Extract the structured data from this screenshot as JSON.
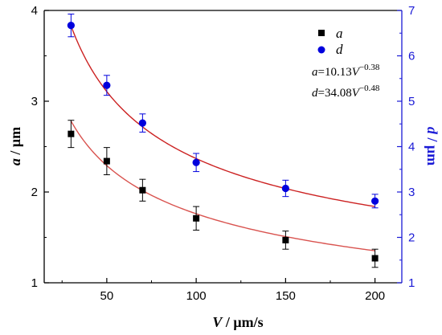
{
  "chart_data": {
    "type": "scatter",
    "x": [
      30,
      50,
      70,
      100,
      150,
      200
    ],
    "xlabel_var": "V",
    "xlabel_unit": " / μm/s",
    "xlim": [
      15,
      215
    ],
    "xticks": [
      "50",
      "100",
      "150",
      "200"
    ],
    "xtick_values": [
      50,
      100,
      150,
      200
    ],
    "ylabel_var": "a",
    "ylabel_unit": " / μm",
    "ylim": [
      1,
      4
    ],
    "yticks": [
      "1",
      "2",
      "3",
      "4"
    ],
    "yticks_values": [
      1,
      2,
      3,
      4
    ],
    "y2label_var": "d",
    "y2label_unit": " / μm",
    "y2lim": [
      1,
      7
    ],
    "y2ticks": [
      "1",
      "2",
      "3",
      "4",
      "5",
      "6",
      "7"
    ],
    "y2ticks_values": [
      1,
      2,
      3,
      4,
      5,
      6,
      7
    ],
    "series": [
      {
        "name": "a",
        "axis": "left",
        "marker": "square",
        "color": "#000000",
        "fit_color": "#d9534f",
        "values": [
          2.64,
          2.34,
          2.02,
          1.71,
          1.47,
          1.27
        ],
        "errors": [
          0.15,
          0.15,
          0.12,
          0.13,
          0.1,
          0.1
        ],
        "fit": {
          "coef": 10.13,
          "exp": -0.38
        }
      },
      {
        "name": "d",
        "axis": "right",
        "marker": "circle",
        "color": "#0000dd",
        "fit_color": "#cc2222",
        "values": [
          6.67,
          5.35,
          4.52,
          3.65,
          3.08,
          2.8
        ],
        "errors": [
          0.25,
          0.22,
          0.2,
          0.2,
          0.18,
          0.15
        ],
        "fit": {
          "coef": 34.08,
          "exp": -0.48
        }
      }
    ],
    "legend_position": "top-right",
    "equations": [
      {
        "var": "a",
        "text": "=10.13",
        "base": "V",
        "exp": "−0.38"
      },
      {
        "var": "d",
        "text": "=34.08",
        "base": "V",
        "exp": "−0.48"
      }
    ]
  }
}
